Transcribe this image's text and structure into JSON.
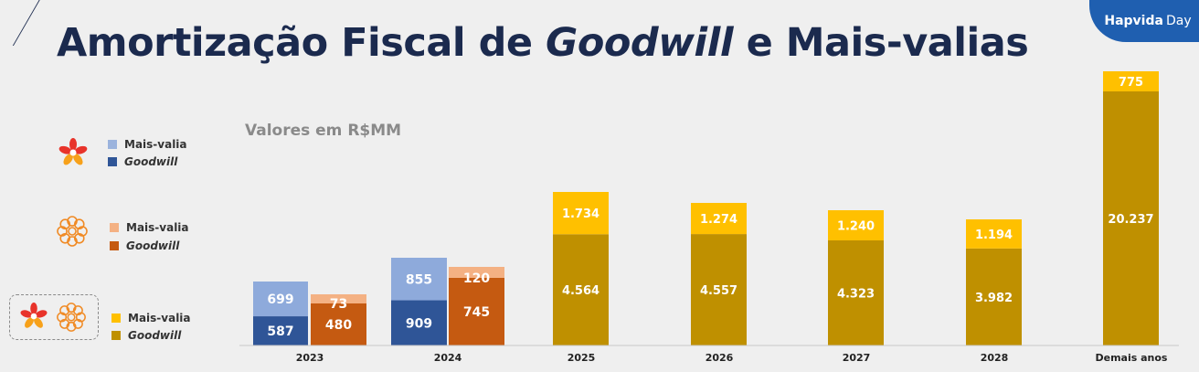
{
  "header": {
    "title_part1": "Amortização Fiscal de ",
    "title_italic": "Goodwill",
    "title_part2": " e Mais-valias",
    "brand_main": "Hapvida",
    "brand_suffix": "Day"
  },
  "subtitle": "Valores em R$MM",
  "legend": {
    "groups": [
      {
        "icon": "hapvida-flower-icon",
        "mais_valia_label": "Mais-valia",
        "goodwill_label": "Goodwill",
        "mais_valia_color": "#9bb3dd",
        "goodwill_color": "#2f5597"
      },
      {
        "icon": "notredame-mandala-icon",
        "mais_valia_label": "Mais-valia",
        "goodwill_label": "Goodwill",
        "mais_valia_color": "#f4b183",
        "goodwill_color": "#c55a11"
      },
      {
        "icon": "combined-icons",
        "mais_valia_label": "Mais-valia",
        "goodwill_label": "Goodwill",
        "mais_valia_color": "#ffc000",
        "goodwill_color": "#bf9000"
      }
    ]
  },
  "chart_data": {
    "type": "bar",
    "stacked": true,
    "title": "Amortização Fiscal de Goodwill e Mais-valias",
    "subtitle": "Valores em R$MM",
    "categories": [
      "2023",
      "2024",
      "2025",
      "2026",
      "2027",
      "2028",
      "Demais anos"
    ],
    "bars": [
      {
        "category": "2023",
        "group": "Hapvida",
        "goodwill": 587,
        "goodwill_label": "587",
        "mais_valia": 699,
        "mais_valia_label": "699",
        "goodwill_color": "#2f5597",
        "mais_valia_color": "#8eaadb"
      },
      {
        "category": "2023",
        "group": "NotreDame",
        "goodwill": 480,
        "goodwill_label": "480",
        "mais_valia": 73,
        "mais_valia_label": "73",
        "goodwill_color": "#c55a11",
        "mais_valia_color": "#f4b183"
      },
      {
        "category": "2024",
        "group": "Hapvida",
        "goodwill": 909,
        "goodwill_label": "909",
        "mais_valia": 855,
        "mais_valia_label": "855",
        "goodwill_color": "#2f5597",
        "mais_valia_color": "#8eaadb"
      },
      {
        "category": "2024",
        "group": "NotreDame",
        "goodwill": 745,
        "goodwill_label": "745",
        "mais_valia": 120,
        "mais_valia_label": "120",
        "goodwill_color": "#c55a11",
        "mais_valia_color": "#f4b183"
      },
      {
        "category": "2025",
        "group": "Combined",
        "goodwill": 4564,
        "goodwill_label": "4.564",
        "mais_valia": 1734,
        "mais_valia_label": "1.734",
        "goodwill_color": "#bf9000",
        "mais_valia_color": "#ffc000"
      },
      {
        "category": "2026",
        "group": "Combined",
        "goodwill": 4557,
        "goodwill_label": "4.557",
        "mais_valia": 1274,
        "mais_valia_label": "1.274",
        "goodwill_color": "#bf9000",
        "mais_valia_color": "#ffc000"
      },
      {
        "category": "2027",
        "group": "Combined",
        "goodwill": 4323,
        "goodwill_label": "4.323",
        "mais_valia": 1240,
        "mais_valia_label": "1.240",
        "goodwill_color": "#bf9000",
        "mais_valia_color": "#ffc000"
      },
      {
        "category": "2028",
        "group": "Combined",
        "goodwill": 3982,
        "goodwill_label": "3.982",
        "mais_valia": 1194,
        "mais_valia_label": "1.194",
        "goodwill_color": "#bf9000",
        "mais_valia_color": "#ffc000"
      },
      {
        "category": "Demais anos",
        "group": "Combined",
        "goodwill": 20237,
        "goodwill_label": "20.237",
        "mais_valia": 775,
        "mais_valia_label": "775",
        "goodwill_color": "#bf9000",
        "mais_valia_color": "#ffc000"
      }
    ]
  }
}
